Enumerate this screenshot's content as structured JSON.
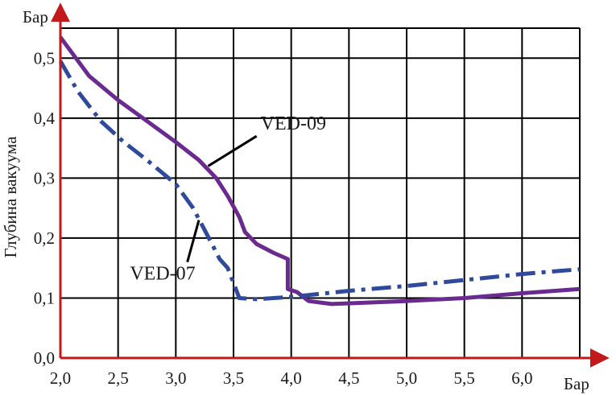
{
  "chart_data": {
    "type": "line",
    "title": "",
    "xlabel": "Бар",
    "ylabel": "Глубина вакуума",
    "yunit": "Бар",
    "xlim": [
      2.0,
      6.5
    ],
    "ylim": [
      0.0,
      0.55
    ],
    "xticks": [
      2.0,
      2.5,
      3.0,
      3.5,
      4.0,
      4.5,
      5.0,
      5.5,
      6.0
    ],
    "xtick_labels": [
      "2,0",
      "2,5",
      "3,0",
      "3,5",
      "4,0",
      "4,5",
      "5,0",
      "5,5",
      "6,0"
    ],
    "yticks": [
      0.0,
      0.1,
      0.2,
      0.3,
      0.4,
      0.5
    ],
    "ytick_labels": [
      "0,0",
      "0,1",
      "0,2",
      "0,3",
      "0,4",
      "0,5"
    ],
    "grid": true,
    "series": [
      {
        "name": "VED-09",
        "color": "#6b2a8f",
        "style": "solid",
        "points": [
          [
            2.0,
            0.535
          ],
          [
            2.25,
            0.47
          ],
          [
            2.5,
            0.43
          ],
          [
            2.75,
            0.395
          ],
          [
            3.0,
            0.36
          ],
          [
            3.2,
            0.33
          ],
          [
            3.35,
            0.3
          ],
          [
            3.45,
            0.27
          ],
          [
            3.55,
            0.235
          ],
          [
            3.6,
            0.21
          ],
          [
            3.7,
            0.19
          ],
          [
            3.85,
            0.175
          ],
          [
            3.97,
            0.165
          ],
          [
            3.97,
            0.115
          ],
          [
            4.05,
            0.11
          ],
          [
            4.15,
            0.095
          ],
          [
            4.35,
            0.09
          ],
          [
            5.0,
            0.095
          ],
          [
            5.5,
            0.1
          ],
          [
            6.0,
            0.108
          ],
          [
            6.5,
            0.115
          ]
        ]
      },
      {
        "name": "VED-07",
        "color": "#2f4a9a",
        "style": "dashdot",
        "points": [
          [
            2.0,
            0.495
          ],
          [
            2.15,
            0.445
          ],
          [
            2.35,
            0.395
          ],
          [
            2.55,
            0.36
          ],
          [
            2.75,
            0.33
          ],
          [
            3.0,
            0.29
          ],
          [
            3.15,
            0.25
          ],
          [
            3.3,
            0.195
          ],
          [
            3.38,
            0.165
          ],
          [
            3.45,
            0.15
          ],
          [
            3.52,
            0.115
          ],
          [
            3.55,
            0.1
          ],
          [
            3.7,
            0.098
          ],
          [
            4.0,
            0.102
          ],
          [
            4.5,
            0.112
          ],
          [
            5.0,
            0.12
          ],
          [
            5.5,
            0.13
          ],
          [
            6.0,
            0.14
          ],
          [
            6.5,
            0.148
          ]
        ]
      }
    ],
    "annotations": [
      {
        "text": "VED-09",
        "series": "VED-09",
        "at": [
          3.28,
          0.32
        ],
        "label_at": [
          3.7,
          0.37
        ]
      },
      {
        "text": "VED-07",
        "series": "VED-07",
        "at": [
          3.2,
          0.23
        ],
        "label_at": [
          3.1,
          0.16
        ]
      }
    ],
    "axis_color": "#c21a1a"
  }
}
